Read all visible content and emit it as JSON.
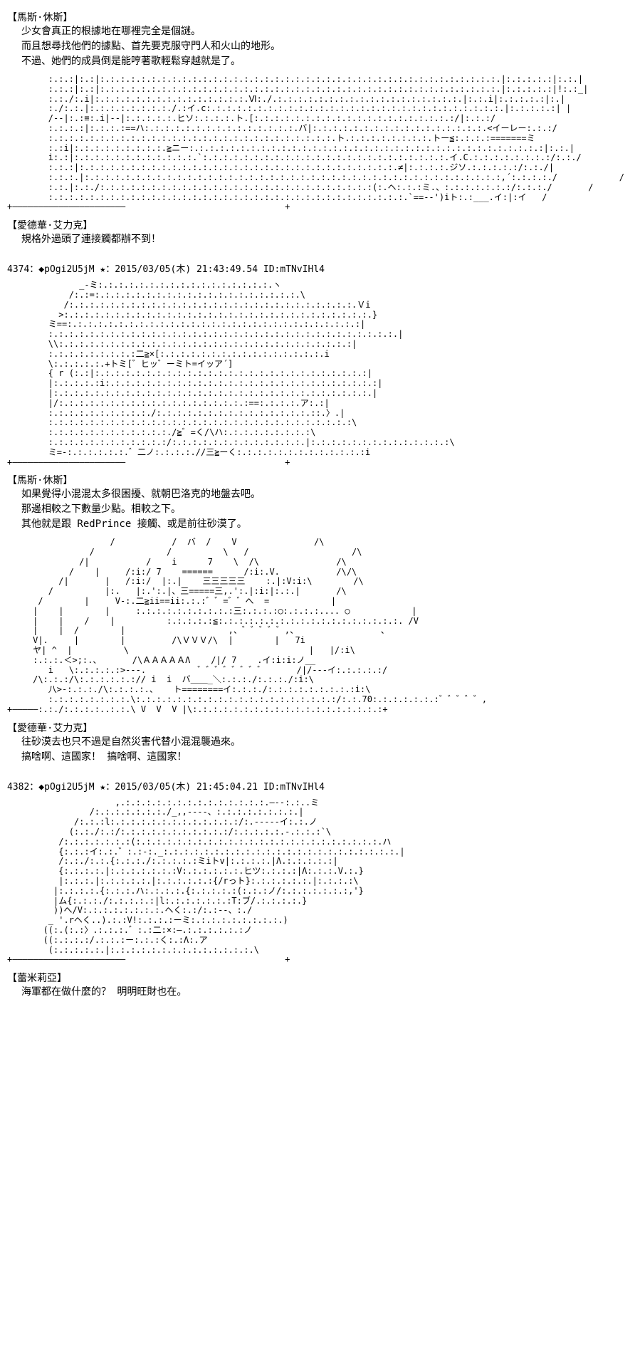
{
  "posts": [
    {
      "char_name_1": "【馬斯·休斯】",
      "dialogue_1": "少女會真正的根據地在哪裡完全是個謎。\n而且想尋找他們的據點、首先要克服守門人和火山的地形。\n不過、她們的成員倒是能哼著歌輕鬆穿越就是了。",
      "aa_1": "        :.:.:|:.:|:.:.:.:.:.:.:.:.:.:.:.:.:.:.:.:.:.:.:.:.:.:.:.:.:.:.:.:.:.:.:.:.:.:.:.:.:.:.:.|:.:.:.:.:|:.:.|\n        :.:.:|:.:|:.:.:.:.:.:.:.:.:.:.:.:.:.:.:.:.:.:.:.:.:.:.:.:.:.:.:.:.:.:.:.:.:.:.:.:.:.:.:.|:.:.:.:.:|!:.:_|\n        :.:./:.i|:.:.:.:.:.:.:.:.:.:.:.:.:.:.:.Ⅵ:./.:.:.:.:.:.:.:.:.:.:.:.:.:.:.:.:.:.:.|:.:.i|:.:.:.:.:|:.|\n        :./:.:.|:.:.:.:.:.:.:.:./.:イ.c:.:.:.:.:.:.:.:.:.:.:.:.:.:.:.:.:.:.:.:.:.:.:.:.:.:.:.:.:.|:.:.:.:.:| |\n        /--|:.:≡:.i|--|:.:.:.:.:.ヒソ:.:.:.:.ト.[:.:.:.:.:.:.:.:.:.:.:.:.:.:.:.:.:.:.:.:/|:.:.:/\n        :.:.:.:|:.:.:.:==ハ:.:.:.:.:.:.:.:.:.:.:.:.:.:.:.バ|:.:.:.:.:.:.:.:.:.:.:.:.:.:.:.:.:.<イーレー:.:.:/\n        :.:.:.:.:.:.:.:.:.:.:.:.:.:.:.:.:.:.:.:.:.:.:.:.:.:.:.:.ト.:.:.:.:.:.:.:.:.トー≦:.:.:.:=======ミ\n        :.:i|:.:.:.:.:.:.:.:.:.≧ニー:.:.:.:.:.:.:.:.:.:.:.:.:.:.:.:.:.:.:.:.:.:.:.:.:.:.:.:.:.:.:.:.:.:.:|:.:.|\n        i:.:|:.:.:.:.:.:.:.:.:.:.:.:.`:.:.:.:.:.:.:.:.:.:.:.:.:.:.:.:.:.:.:.:.:.:.:.:.イ.C.:.:.:.:.:.:.:.:/:.:./\n        :.:.:|:.:.:.:.:.:.:.:.:.:.:.:.:.:.:.:.:.:.:.:.:.:.:.:.:.:.:.:.:.:.:.≠|:.:.:.:.ジソ.:.:.:.:.:/:.:./|\n        :.:.:.|:.:.:.:.:.:.:.:.:.:.:.:.:.:.:.:.:.:.:.:.:.:.:.:.:.:.:.:.:.:.:.:.:.:.:.:.:.:.:.:.:,´:.:.:.:./            /\n        :.:.|:.:./:.:.:.:.:.:.:.:.:.:.:.:.:.:.:.:.:.:.:.:.:.:.:.:.:.:.:(:.ヘ:.:.:ミ.、:.:.:.:.:.:.:/:.:.:./       /\n        :.:.:.:.:.:.:.:.:.:.:.:.:.:.:.:.:.:.:.:.:.:.:.:.:.:.:.:.:.:.:.:.:.:.:.`==--')iト:.:___.イ:|:イ   /\n+――――――――――――――――――――――                               +",
      "char_name_2": "【愛德華·艾力克】",
      "dialogue_2": "規格外過頭了連接觸都辦不到！"
    },
    {
      "header": "4374：◆pOgi2U5jM ★：2015/03/05(木) 21:43:49.54 ID:mTNvIHl4",
      "aa_1": "              _-ミ:.:.:.:.:.:.:.:.:.:.:.:.:.:.:.:.:.ヽ\n            /:.:=:.:.:.:.:.:.:.:.:.:.:.:.:.:.:.:.:.:.:.:.\\\n           /:.:.:.:.:.:.:.:.:.:.:.:.:.:.:.:.:.:.:.:.:.:.:.:.:.:.:.:.Ｖi\n          >:.:.:.:.:.:.:.:.:.:.:.:.:.:.:.:.:.:.:.:.:.:.:.:.:.:.:.:.:.:.}\n        ミ==:.:.:.:.:.:.:.:.:.:.:.:.:.:.:.:.:.:.:.:.:.:.:.:.:.:.:.:.:|\n        :.:.:.:.:.:.:.:.:.:.:.:.:.:.:.:.:.:.:.:.:.:.:.:.:.:.:.:.:.:.:.:.:.:.|\n        \\\\:.:.:.:.:.:.:.:.:.:.:.:.:.:.:.:.:.:.:.:.:.:.:.:.:.:.:.:.:|\n        :.:.:.:.:.:.:.:.:二≧×[:.:.:.:.:.:.:.:.:.:.:.:.:.:.:.:.i\n        \\:.:.:.:.:.+トミ[゛ヒッ゛ーミト=イッア´]\n        { r (:.:|:.:.:.:.:.:.:.:.:.:.:.:.:.:.:.:.:.:.:.:.:.:.:.:.:.:.:|\n        |:.:.:.:.:i:.:.:.:.:.:.:.:.:.:.:.:.:.:.:.:.:.:.:.:.:.:.:.:.:.:.:|\n        |:.:.:.:.:.:.:.:.:.:.:.:.:.:.:.:.:.:.:.:.:.:.:.:.:.:.:.:.:.:.:.|\n        |/:.:.:.:.:.:.:.:.:.:.:.:.:.:.:.:.:.:.:==:.:.:.:.ア:.:|\n        :.:.:.:.:.:.:.:.:.:./:.:.:.:.:.:.:.:.:.:.:.:.:.:.:.::.〉.|\n        :.:.:.:.:.:.:.:.:.:.:.:.:.:.:.:.:.:.:.:.:.:.:.:.:.:.:.:.:.:\\\n        :.:.:.:.:.:.:.:.:.:.:.:./≧゛=く/\\ハ:.:.:.:.:.:.:.:.:\\\n        :.:.:.:.:.:.:.:.:.:.:.:/:.:.:.:.:.:.:.:.:.:.:.:.:.|:.:.:.:.:.:.:.:.:.:.:.:.:.:\\\n        ミ=-:.:.:.:.:.:.゛二ノ:.:.:.:.//三≧ーく:.:.:.:.:.:.:.:.:.:.:.:.:i\n+――――――――――――――――――――――                               +",
      "char_name_1": "【馬斯·休斯】",
      "dialogue_1": "如果覺得小混混太多很困擾、就朝巴洛克的地盤去吧。\n那邊相較之下數量少點。相較之下。\n其他就是跟 RedPrince 接觸、或是前往砂漠了。",
      "aa_2": "                    /           /  バ  /    V               /\\\n                /              /          \\   /                    /\\\n              /|           /    i      7    \\  /\\               /\\\n            /    |     /:i:/ 7    ======      /:i:.V.           /\\/\\\n          /|       |   /:i:/  |:.|    三三三三三    :.|:V:i:\\        /\\\n        /          |:.   |:.':.|、三=====三,.':.|:i:|:.:.|       /\\\n      /        |     V-:.二≧ii==ii:.:.:゛゛=゛゛へ  =            |\n     |    |        |     :.:.:.:.:.:.:.:.:.:三:.:.:.:○:.:.:.:.... ○            |\n     |    |    /    |          :.:.:.:.:≦:.:.:.:.:.:.:.:.:.:.:.:.:.:.:.:.:.:. /V\n     |    |  /        |                    ,、゛゛゛゛゛,、                、\n     V|.     |        |         /\\ＶＶＶ/\\  |        |   7i\n     ヤ| ^  |          \\                                   |   |/:i\\\n     :.:.:.＜>;:.、      /\\ＡＡＡＡＡΛ    /|/ 7    .イ:i:i:ノ__\n        i   \\:.:.:.:.:>---.          ゛゛゛゛゛゛゛゛      /|/---イ:.:.:.:.:/\n     /\\:.:.:/\\:.:.:.:.:.:// i  i  バ＿＿_＼:.:.:./:.:.:./:i:\\\n        八>-:.:.:./\\:.:.:.:.、   ト========イ:.:.:./:.:.:.:.:.:.:.:.:i:\\\n        :.:.:.:.:.:.:.:.\\:.:.:.:.:.:.:.:.:.:.:.:.:.:.:.:.:.:.:.:/:.:.70:.:.:.:.:.:.:゛゛゛゛゛,\n+―――――:.:./:.:.:.:..:.:.\\ V  V  V |\\:.:.:.:.:.:.:.:.:.:.:.:.:.:.:.:.:.:.:+",
      "char_name_2": "【愛德華·艾力克】",
      "dialogue_2": "往砂漠去也只不過是自然災害代替小混混襲過來。\n搞啥啊、這國家！   搞啥啊、這國家！"
    },
    {
      "header": "4382：◆pOgi2U5jM ★：2015/03/05(木) 21:45:04.21 ID:mTNvIHl4",
      "aa_1": "                     ,.:.:.:.:.:.:.:.:.:.:.:.:.:.:.―--:.:..ミ\n                /:.:.:.:.:.:.:./_,,----、:.:.:.:.:.:.:.:.|\n             /:.:.:l:.:.:.:.:.:.:.:.:.:.:.:.:/:.-----イ:.:.ノ\n            (:.:./:.:/:.:.:.:.:.:.:.:.:.:.:/:.:.:.:.:.-.:.:.:`\\\n          /:.:.:.:.:.:.:(:.:.:.:.:.:.:.:.:.:.:.:.:.:.:.:.:.:.:.:.:.:.:.:.ハ\n          {:.:.:イ:.:.゛:.:-:._:.:.:.:.:.:.:.:.:.:.:.:.:.:.:.:.:.:.:.:.:.:.:.|\n          /:.:./:.:.{:.:.:./:.:.:.:.:ミiトv|:.:.:.:.|Λ.:.:.:.:.:|\n          {:.:.:.:.|:.:.:.:.:.:.:V:.:.:.:.:.:.ヒツ:.:.:.:|Λ:.:.:.V.:.}\n          |:.:.:.|:.:.:.:.:.|:.:.:.:.:.:{/rっト}:.:.:.:.:.:.|:.:.:.:\\\n         |:.:.:.:.{:.:.:.ハ:.:.:.:.{:.:.:.:.:(:.:.:ノ/:.:.:.:.:.:.:,'}\n         |ム{:.:.:./:.:.:.:.:|l:.:.:.:.:.:.:T:ブ/.:.:.:.:.}\n         ))へ/V:.:.:.:.:.:.:.:.ヘく:.:/:.:--、:./\n        _ '.rヘく..).:.:V!:.:.:.:ーミ:.:.:.:.:.:.:.:.:.)\n       ((:.(:.:〉.:.:.:.゛:.:二:×:―.:.:.:.:.:.:ノ\n       ((:.:.:.:/.:.:.:ー:.:.:く:.:Λ:.ア\n        (:.:.:.:.:.|:.:.:.:.:.:.:.:.:.:.:.:.:.:.\\\n+――――――――――――――――――――――                               +",
      "char_name_1": "【蕾米莉亞】",
      "dialogue_1": "海軍都在做什麼的？   明明旺財也在。"
    }
  ]
}
